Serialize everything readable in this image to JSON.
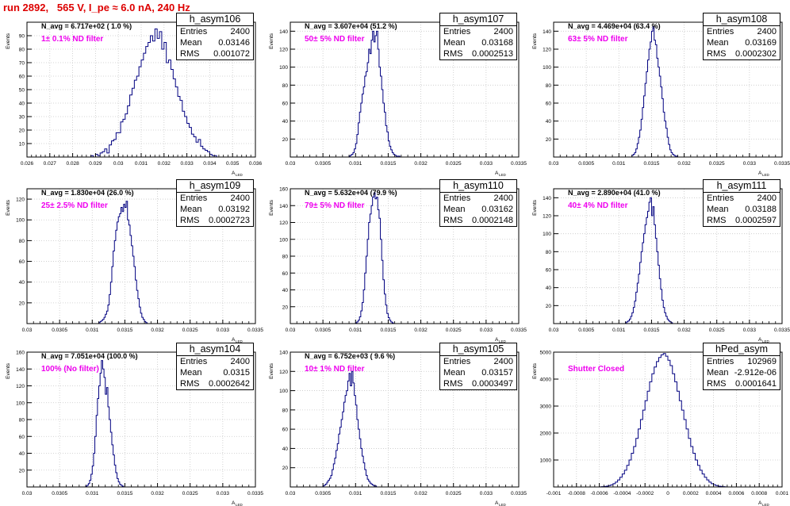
{
  "title": "run 2892,   565 V, I_pe ≈ 6.0 nA, 240 Hz",
  "y_axis_label": "Events",
  "x_axis_label": "A",
  "x_axis_subscript": "LED",
  "colors": {
    "title": "#dd0000",
    "line": "#000080",
    "filter_label": "#ee00ee",
    "grid": "#c8c8c8"
  },
  "panels": [
    {
      "name": "h_asym106",
      "n_avg": "N_avg = 6.717e+02 ( 1.0 %)",
      "filter": "1± 0.1% ND filter",
      "stats": [
        {
          "key": "Entries",
          "value": "2400"
        },
        {
          "key": "Mean",
          "value": "0.03146"
        },
        {
          "key": "RMS",
          "value": "0.001072"
        }
      ]
    },
    {
      "name": "h_asym107",
      "n_avg": "N_avg = 3.607e+04 (51.2 %)",
      "filter": "50± 5% ND filter",
      "stats": [
        {
          "key": "Entries",
          "value": "2400"
        },
        {
          "key": "Mean",
          "value": "0.03168"
        },
        {
          "key": "RMS",
          "value": "0.0002513"
        }
      ]
    },
    {
      "name": "h_asym108",
      "n_avg": "N_avg = 4.469e+04 (63.4 %)",
      "filter": "63± 5% ND filter",
      "stats": [
        {
          "key": "Entries",
          "value": "2400"
        },
        {
          "key": "Mean",
          "value": "0.03169"
        },
        {
          "key": "RMS",
          "value": "0.0002302"
        }
      ]
    },
    {
      "name": "h_asym109",
      "n_avg": "N_avg = 1.830e+04 (26.0 %)",
      "filter": "25± 2.5% ND filter",
      "stats": [
        {
          "key": "Entries",
          "value": "2400"
        },
        {
          "key": "Mean",
          "value": "0.03192"
        },
        {
          "key": "RMS",
          "value": "0.0002723"
        }
      ]
    },
    {
      "name": "h_asym110",
      "n_avg": "N_avg = 5.632e+04 (79.9 %)",
      "filter": "79± 5% ND filter",
      "stats": [
        {
          "key": "Entries",
          "value": "2400"
        },
        {
          "key": "Mean",
          "value": "0.03162"
        },
        {
          "key": "RMS",
          "value": "0.0002148"
        }
      ]
    },
    {
      "name": "h_asym111",
      "n_avg": "N_avg = 2.890e+04 (41.0 %)",
      "filter": "40± 4% ND filter",
      "stats": [
        {
          "key": "Entries",
          "value": "2400"
        },
        {
          "key": "Mean",
          "value": "0.03188"
        },
        {
          "key": "RMS",
          "value": "0.0002597"
        }
      ]
    },
    {
      "name": "h_asym104",
      "n_avg": "N_avg = 7.051e+04 (100.0 %)",
      "filter": "100% (No filter)",
      "stats": [
        {
          "key": "Entries",
          "value": "2400"
        },
        {
          "key": "Mean",
          "value": "0.0315"
        },
        {
          "key": "RMS",
          "value": "0.0002642"
        }
      ]
    },
    {
      "name": "h_asym105",
      "n_avg": "N_avg = 6.752e+03 ( 9.6 %)",
      "filter": "10± 1% ND filter",
      "stats": [
        {
          "key": "Entries",
          "value": "2400"
        },
        {
          "key": "Mean",
          "value": "0.03157"
        },
        {
          "key": "RMS",
          "value": "0.0003497"
        }
      ]
    },
    {
      "name": "hPed_asym",
      "n_avg": "",
      "filter": "Shutter Closed",
      "stats": [
        {
          "key": "Entries",
          "value": "102969"
        },
        {
          "key": "Mean",
          "value": "-2.912e-06"
        },
        {
          "key": "RMS",
          "value": "0.0001641"
        }
      ]
    }
  ],
  "chart_data": [
    {
      "type": "bar",
      "title": "h_asym106",
      "xlim": [
        0.026,
        0.036
      ],
      "ylim": [
        0,
        100
      ],
      "xticks": [
        "0.026",
        "0.027",
        "0.028",
        "0.029",
        "0.03",
        "0.031",
        "0.032",
        "0.033",
        "0.034",
        "0.035",
        "0.036"
      ],
      "yticks": [
        "10",
        "20",
        "30",
        "40",
        "50",
        "60",
        "70",
        "80",
        "90"
      ],
      "ytick_values": [
        10,
        20,
        30,
        40,
        50,
        60,
        70,
        80,
        90
      ],
      "bin_start": 0.0288,
      "bin_width": 0.0001,
      "values": [
        1,
        0,
        2,
        1,
        3,
        4,
        6,
        3,
        9,
        12,
        13,
        18,
        18,
        26,
        28,
        32,
        38,
        46,
        51,
        57,
        60,
        67,
        72,
        77,
        82,
        85,
        90,
        86,
        95,
        88,
        93,
        80,
        85,
        70,
        72,
        65,
        58,
        52,
        45,
        42,
        34,
        30,
        25,
        22,
        17,
        15,
        11,
        13,
        8,
        6,
        5,
        4,
        2,
        1,
        1
      ]
    },
    {
      "type": "bar",
      "title": "h_asym107",
      "xlim": [
        0.03,
        0.0335
      ],
      "ylim": [
        0,
        150
      ],
      "xticks": [
        "0.03",
        "0.0305",
        "0.031",
        "0.0315",
        "0.032",
        "0.0325",
        "0.033",
        "0.0335"
      ],
      "yticks": [
        "20",
        "40",
        "60",
        "80",
        "100",
        "120",
        "140"
      ],
      "ytick_values": [
        20,
        40,
        60,
        80,
        100,
        120,
        140
      ],
      "bin_start": 0.0309,
      "bin_width": 2e-05,
      "values": [
        1,
        2,
        3,
        5,
        9,
        15,
        25,
        38,
        50,
        60,
        70,
        78,
        90,
        95,
        105,
        120,
        115,
        130,
        140,
        128,
        135,
        140,
        120,
        100,
        90,
        75,
        60,
        50,
        35,
        28,
        18,
        12,
        8,
        5,
        3,
        2,
        1,
        1,
        1
      ]
    },
    {
      "type": "bar",
      "title": "h_asym108",
      "xlim": [
        0.03,
        0.0335
      ],
      "ylim": [
        0,
        150
      ],
      "xticks": [
        "0.03",
        "0.0305",
        "0.031",
        "0.0315",
        "0.032",
        "0.0325",
        "0.033",
        "0.0335"
      ],
      "yticks": [
        "20",
        "40",
        "60",
        "80",
        "100",
        "120",
        "140"
      ],
      "ytick_values": [
        20,
        40,
        60,
        80,
        100,
        120,
        140
      ],
      "bin_start": 0.0312,
      "bin_width": 2e-05,
      "values": [
        2,
        3,
        5,
        9,
        15,
        22,
        30,
        42,
        55,
        68,
        82,
        95,
        108,
        120,
        128,
        140,
        145,
        130,
        125,
        110,
        100,
        90,
        78,
        65,
        50,
        40,
        32,
        22,
        14,
        8,
        5,
        3,
        2,
        1,
        1
      ]
    },
    {
      "type": "bar",
      "title": "h_asym109",
      "xlim": [
        0.03,
        0.0335
      ],
      "ylim": [
        0,
        130
      ],
      "xticks": [
        "0.03",
        "0.0305",
        "0.031",
        "0.0315",
        "0.032",
        "0.0325",
        "0.033",
        "0.0335"
      ],
      "yticks": [
        "20",
        "40",
        "60",
        "80",
        "100",
        "120"
      ],
      "ytick_values": [
        20,
        40,
        60,
        80,
        100,
        120
      ],
      "bin_start": 0.0311,
      "bin_width": 2e-05,
      "values": [
        1,
        2,
        3,
        4,
        6,
        9,
        12,
        18,
        28,
        40,
        55,
        70,
        80,
        90,
        98,
        103,
        106,
        112,
        108,
        115,
        112,
        118,
        100,
        95,
        85,
        75,
        65,
        55,
        42,
        32,
        24,
        16,
        10,
        6,
        4,
        2,
        1
      ]
    },
    {
      "type": "bar",
      "title": "h_asym110",
      "xlim": [
        0.03,
        0.0335
      ],
      "ylim": [
        0,
        160
      ],
      "xticks": [
        "0.03",
        "0.0305",
        "0.031",
        "0.0315",
        "0.032",
        "0.0325",
        "0.033",
        "0.0335"
      ],
      "yticks": [
        "20",
        "40",
        "60",
        "80",
        "100",
        "120",
        "140",
        "160"
      ],
      "ytick_values": [
        20,
        40,
        60,
        80,
        100,
        120,
        140,
        160
      ],
      "bin_start": 0.031,
      "bin_width": 2e-05,
      "values": [
        1,
        2,
        4,
        8,
        15,
        25,
        40,
        60,
        80,
        100,
        120,
        130,
        140,
        150,
        155,
        148,
        150,
        135,
        125,
        100,
        75,
        52,
        35,
        22,
        12,
        7,
        4,
        2,
        1
      ]
    },
    {
      "type": "bar",
      "title": "h_asym111",
      "xlim": [
        0.03,
        0.0335
      ],
      "ylim": [
        0,
        150
      ],
      "xticks": [
        "0.03",
        "0.0305",
        "0.031",
        "0.0315",
        "0.032",
        "0.0325",
        "0.033",
        "0.0335"
      ],
      "yticks": [
        "20",
        "40",
        "60",
        "80",
        "100",
        "120",
        "140"
      ],
      "ytick_values": [
        20,
        40,
        60,
        80,
        100,
        120,
        140
      ],
      "bin_start": 0.0311,
      "bin_width": 2e-05,
      "values": [
        1,
        2,
        3,
        5,
        8,
        12,
        18,
        25,
        35,
        45,
        55,
        68,
        80,
        90,
        100,
        110,
        118,
        125,
        135,
        140,
        120,
        130,
        110,
        95,
        80,
        65,
        50,
        38,
        26,
        18,
        12,
        8,
        5,
        3,
        2,
        1
      ]
    },
    {
      "type": "bar",
      "title": "h_asym104",
      "xlim": [
        0.03,
        0.0335
      ],
      "ylim": [
        0,
        160
      ],
      "xticks": [
        "0.03",
        "0.0305",
        "0.031",
        "0.0315",
        "0.032",
        "0.0325",
        "0.033",
        "0.0335"
      ],
      "yticks": [
        "20",
        "40",
        "60",
        "80",
        "100",
        "120",
        "140",
        "160"
      ],
      "ytick_values": [
        20,
        40,
        60,
        80,
        100,
        120,
        140,
        160
      ],
      "bin_start": 0.0309,
      "bin_width": 2e-05,
      "values": [
        1,
        2,
        4,
        8,
        15,
        25,
        40,
        60,
        85,
        105,
        120,
        135,
        150,
        140,
        130,
        110,
        118,
        95,
        80,
        65,
        50,
        38,
        26,
        17,
        10,
        6,
        3,
        2,
        1
      ]
    },
    {
      "type": "bar",
      "title": "h_asym105",
      "xlim": [
        0.03,
        0.0335
      ],
      "ylim": [
        0,
        140
      ],
      "xticks": [
        "0.03",
        "0.0305",
        "0.031",
        "0.0315",
        "0.032",
        "0.0325",
        "0.033",
        "0.0335"
      ],
      "yticks": [
        "20",
        "40",
        "60",
        "80",
        "100",
        "120",
        "140"
      ],
      "ytick_values": [
        20,
        40,
        60,
        80,
        100,
        120,
        140
      ],
      "bin_start": 0.0305,
      "bin_width": 2e-05,
      "values": [
        1,
        2,
        3,
        5,
        7,
        9,
        12,
        18,
        24,
        30,
        38,
        45,
        55,
        62,
        70,
        78,
        88,
        95,
        100,
        110,
        118,
        105,
        120,
        108,
        95,
        85,
        70,
        60,
        50,
        40,
        32,
        25,
        18,
        12,
        8,
        6,
        4,
        3,
        2,
        1,
        1
      ]
    },
    {
      "type": "bar",
      "title": "hPed_asym",
      "xlim": [
        -0.001,
        0.001
      ],
      "ylim": [
        0,
        5000
      ],
      "xticks": [
        "-0.001",
        "-0.0008",
        "-0.0006",
        "-0.0004",
        "-0.0002",
        "0",
        "0.0002",
        "0.0004",
        "0.0006",
        "0.0008",
        "0.001"
      ],
      "yticks": [
        "1000",
        "2000",
        "3000",
        "4000",
        "5000"
      ],
      "ytick_values": [
        1000,
        2000,
        3000,
        4000,
        5000
      ],
      "bin_start": -0.0006,
      "bin_width": 2e-05,
      "values": [
        5,
        10,
        18,
        30,
        50,
        80,
        120,
        180,
        260,
        360,
        480,
        620,
        800,
        1000,
        1250,
        1500,
        1800,
        2150,
        2500,
        2850,
        3200,
        3550,
        3900,
        4200,
        4450,
        4650,
        4800,
        4900,
        4950,
        4850,
        4700,
        4500,
        4200,
        3900,
        3550,
        3200,
        2850,
        2500,
        2150,
        1800,
        1500,
        1250,
        1000,
        800,
        620,
        480,
        360,
        260,
        180,
        120,
        80,
        50,
        30,
        18,
        10,
        5
      ]
    }
  ]
}
